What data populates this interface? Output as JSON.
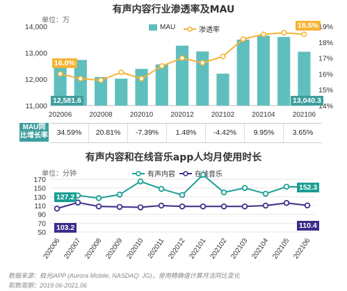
{
  "chart1": {
    "title": "有声内容行业渗透率及MAU",
    "unit": "单位：万",
    "legend": [
      "MAU",
      "渗透率"
    ],
    "table_label_line1": "MAU同",
    "table_label_line2": "比增长率",
    "growth_rates": [
      "34.59%",
      "20.81%",
      "-7.39%",
      "1.48%",
      "-4.42%",
      "9.95%",
      "3.65%"
    ],
    "callouts": {
      "mau_first": "12,581.6",
      "mau_last": "13,040.3",
      "pen_first": "16.0%",
      "pen_last": "18.5%"
    },
    "colors": {
      "bar": "#5fbfbe",
      "line": "#f5b335",
      "label_bg": "#3f9e9e"
    }
  },
  "chart2": {
    "title": "有声内容和在线音乐app人均月使用时长",
    "unit": "单位：分钟",
    "legend": [
      "有声内容",
      "在线音乐"
    ],
    "callouts": {
      "s1_first": "127.2",
      "s1_last": "152.3",
      "s2_first": "103.2",
      "s2_last": "110.4"
    },
    "colors": {
      "s1": "#1a9e93",
      "s2": "#3b2d8a"
    }
  },
  "footer": {
    "source": "数据来源：极光iAPP (Aurora Mobile, NASDAQ: JG)，使用精确值计算月活同比变化",
    "period": "取数周期：2019.06-2021.06"
  },
  "chart_data": [
    {
      "type": "bar",
      "title": "有声内容行业渗透率及MAU",
      "categories": [
        "202006",
        "202007",
        "202008",
        "202009",
        "202010",
        "202011",
        "202012",
        "202101",
        "202102",
        "202103",
        "202104",
        "202105",
        "202106"
      ],
      "tick_labels": [
        "202006",
        "202008",
        "202010",
        "202012",
        "202102",
        "202104",
        "202106"
      ],
      "series": [
        {
          "name": "MAU",
          "axis": "left",
          "type": "bar",
          "values": [
            12581.6,
            12730,
            12080,
            12020,
            12390,
            12560,
            13270,
            13050,
            12210,
            13500,
            13650,
            13600,
            13040.3
          ]
        },
        {
          "name": "渗透率",
          "axis": "right",
          "type": "line",
          "values": [
            16.0,
            15.7,
            15.6,
            16.1,
            15.7,
            16.5,
            17.0,
            16.7,
            17.1,
            18.2,
            18.5,
            18.6,
            18.5
          ]
        }
      ],
      "ylim_left": [
        11000,
        14000
      ],
      "yticks_left": [
        "11,000",
        "12,000",
        "13,000",
        "14,000"
      ],
      "ylim_right": [
        14,
        19
      ],
      "yticks_right": [
        "14%",
        "15%",
        "16%",
        "17%",
        "18%",
        "19%"
      ],
      "legend": "top"
    },
    {
      "type": "line",
      "title": "有声内容和在线音乐app人均月使用时长",
      "categories": [
        "202006",
        "202007",
        "202008",
        "202009",
        "202010",
        "202011",
        "202012",
        "202101",
        "202102",
        "202103",
        "202104",
        "202105",
        "202106"
      ],
      "series": [
        {
          "name": "有声内容",
          "values": [
            127.2,
            133,
            127,
            135,
            165,
            148,
            134,
            180,
            140,
            150,
            137,
            153,
            152.3
          ]
        },
        {
          "name": "在线音乐",
          "values": [
            103.2,
            117,
            108,
            107,
            106,
            110,
            108,
            108,
            108,
            108,
            110,
            116,
            110.4
          ]
        }
      ],
      "ylim": [
        50,
        170
      ],
      "yticks": [
        "50",
        "70",
        "90",
        "110",
        "130",
        "150",
        "170"
      ],
      "legend": "top"
    }
  ]
}
